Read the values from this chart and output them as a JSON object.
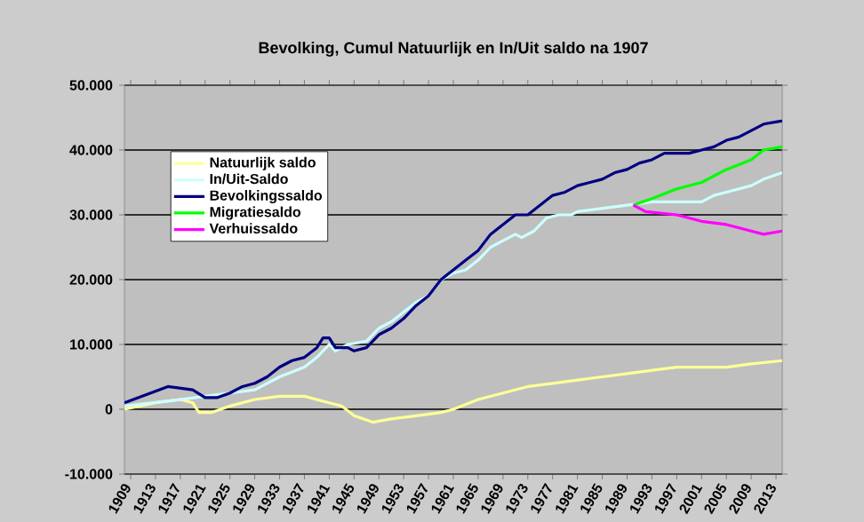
{
  "chart_data": {
    "type": "line",
    "title": "Bevolking, Cumul Natuurlijk en In/Uit saldo na 1907",
    "xlim": [
      1908,
      2014
    ],
    "xticks": [
      1909,
      1913,
      1917,
      1921,
      1925,
      1929,
      1933,
      1937,
      1941,
      1945,
      1949,
      1953,
      1957,
      1961,
      1965,
      1969,
      1973,
      1977,
      1981,
      1985,
      1989,
      1993,
      1997,
      2001,
      2005,
      2009,
      2013
    ],
    "ylim": [
      -10000,
      50000
    ],
    "yticks": [
      {
        "value": -10000,
        "label": "-10.000"
      },
      {
        "value": 0,
        "label": "0"
      },
      {
        "value": 10000,
        "label": "10.000"
      },
      {
        "value": 20000,
        "label": "20.000"
      },
      {
        "value": 30000,
        "label": "30.000"
      },
      {
        "value": 40000,
        "label": "40.000"
      },
      {
        "value": 50000,
        "label": "50.000"
      }
    ],
    "grid": "y",
    "legend": "top left",
    "marker": "none",
    "line_style": "solid",
    "series": [
      {
        "name": "Natuurlijk saldo",
        "color": "#ffff99",
        "x": [
          1908,
          1913,
          1917,
          1919,
          1920,
          1922,
          1925,
          1929,
          1933,
          1937,
          1941,
          1943,
          1945,
          1948,
          1951,
          1955,
          1959,
          1961,
          1965,
          1969,
          1973,
          1977,
          1981,
          1985,
          1989,
          1993,
          1997,
          2001,
          2005,
          2009,
          2014
        ],
        "values": [
          0,
          1000,
          1500,
          1000,
          -500,
          -500,
          500,
          1500,
          2000,
          2000,
          1000,
          500,
          -1000,
          -2000,
          -1500,
          -1000,
          -500,
          0,
          1500,
          2500,
          3500,
          4000,
          4500,
          5000,
          5500,
          6000,
          6500,
          6500,
          6500,
          7000,
          7500
        ]
      },
      {
        "name": "In/Uit-Saldo",
        "color": "#ccffff",
        "x": [
          1908,
          1917,
          1921,
          1925,
          1929,
          1933,
          1937,
          1939,
          1941,
          1942,
          1944,
          1947,
          1949,
          1951,
          1953,
          1955,
          1957,
          1959,
          1961,
          1963,
          1965,
          1967,
          1969,
          1971,
          1972,
          1974,
          1976,
          1978,
          1980,
          1981,
          1985,
          1989,
          1993,
          1997,
          2001,
          2003,
          2005,
          2009,
          2011,
          2014
        ],
        "values": [
          500,
          1500,
          2000,
          2500,
          3000,
          5000,
          6500,
          8000,
          10000,
          9000,
          10000,
          10500,
          12500,
          13500,
          15000,
          16500,
          17500,
          20000,
          21000,
          21500,
          23000,
          25000,
          26000,
          27000,
          26500,
          27500,
          29500,
          30000,
          30000,
          30500,
          31000,
          31500,
          32000,
          32000,
          32000,
          33000,
          33500,
          34500,
          35500,
          36500
        ]
      },
      {
        "name": "Bevolkingssaldo",
        "color": "#000080",
        "x": [
          1908,
          1915,
          1919,
          1921,
          1923,
          1925,
          1927,
          1929,
          1931,
          1933,
          1935,
          1937,
          1939,
          1940,
          1941,
          1942,
          1944,
          1945,
          1947,
          1949,
          1951,
          1953,
          1955,
          1957,
          1959,
          1961,
          1963,
          1965,
          1967,
          1969,
          1971,
          1973,
          1975,
          1977,
          1979,
          1981,
          1983,
          1985,
          1987,
          1989,
          1991,
          1993,
          1995,
          1997,
          1999,
          2001,
          2003,
          2005,
          2007,
          2009,
          2011,
          2014
        ],
        "values": [
          1000,
          3500,
          3000,
          1800,
          1800,
          2500,
          3500,
          4000,
          5000,
          6500,
          7500,
          8000,
          9500,
          11000,
          11000,
          9500,
          9500,
          9000,
          9500,
          11500,
          12500,
          14000,
          16000,
          17500,
          20000,
          21500,
          23000,
          24500,
          27000,
          28500,
          30000,
          30000,
          31500,
          33000,
          33500,
          34500,
          35000,
          35500,
          36500,
          37000,
          38000,
          38500,
          39500,
          39500,
          39500,
          40000,
          40500,
          41500,
          42000,
          43000,
          44000,
          44500
        ]
      },
      {
        "name": "Migratiesaldo",
        "color": "#00ff00",
        "x": [
          1990,
          1993,
          1997,
          2001,
          2005,
          2009,
          2011,
          2014
        ],
        "values": [
          31500,
          32500,
          34000,
          35000,
          37000,
          38500,
          40000,
          40500
        ]
      },
      {
        "name": "Verhuissaldo",
        "color": "#ff00ff",
        "x": [
          1990,
          1992,
          1997,
          2001,
          2005,
          2009,
          2011,
          2014
        ],
        "values": [
          31500,
          30500,
          30000,
          29000,
          28500,
          27500,
          27000,
          27500
        ]
      }
    ]
  }
}
